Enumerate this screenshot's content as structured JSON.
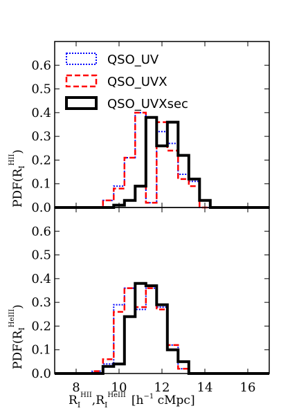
{
  "chart_data": [
    {
      "type": "step",
      "panel": "top",
      "ylabel": {
        "main": "PDF(R",
        "sub": "I",
        "sup": "HII",
        "close": ")"
      },
      "xlim": [
        7,
        17
      ],
      "ylim": [
        0,
        0.7
      ],
      "yticks": [
        "0.0",
        "0.1",
        "0.2",
        "0.3",
        "0.4",
        "0.5",
        "0.6"
      ],
      "bin_edges": [
        9.25,
        9.75,
        10.25,
        10.75,
        11.25,
        11.75,
        12.25,
        12.75,
        13.25,
        13.75,
        14.25,
        14.75,
        15.25,
        15.75,
        16.25
      ],
      "series": [
        {
          "name": "QSO_UV",
          "color": "#0000ff",
          "style": "dotted",
          "values": [
            0.03,
            0.09,
            0.21,
            0.4,
            0.02,
            0.32,
            0.27,
            0.14,
            0.11,
            0.0,
            0.0,
            0.0,
            0.0,
            0.0
          ]
        },
        {
          "name": "QSO_UVX",
          "color": "#ff0000",
          "style": "dashed",
          "values": [
            0.03,
            0.08,
            0.21,
            0.4,
            0.02,
            0.36,
            0.24,
            0.12,
            0.09,
            0.0,
            0.0,
            0.0,
            0.0,
            0.0
          ]
        },
        {
          "name": "QSO_UVXsec",
          "color": "#000000",
          "style": "solid",
          "values": [
            0.0,
            0.01,
            0.03,
            0.09,
            0.38,
            0.26,
            0.36,
            0.22,
            0.12,
            0.03,
            0.0,
            0.0,
            0.0,
            0.0
          ]
        }
      ]
    },
    {
      "type": "step",
      "panel": "bottom",
      "ylabel": {
        "main": "PDF(R",
        "sub": "I",
        "sup": "HeIII",
        "close": ")"
      },
      "xlabel": {
        "r1": "R",
        "r1_sub": "I",
        "r1_sup": "HII",
        "sep": ",",
        "r2": "R",
        "r2_sub": "I",
        "r2_sup": "HeIII",
        "unit": "[h",
        "unit_sup": "−1",
        "unit_end": " cMpc]"
      },
      "xlim": [
        7,
        17
      ],
      "ylim": [
        0,
        0.7
      ],
      "xticks": [
        "8",
        "10",
        "12",
        "14",
        "16"
      ],
      "yticks": [
        "0.0",
        "0.1",
        "0.2",
        "0.3",
        "0.4",
        "0.5",
        "0.6"
      ],
      "bin_edges": [
        8.75,
        9.25,
        9.75,
        10.25,
        10.75,
        11.25,
        11.75,
        12.25,
        12.75,
        13.25,
        13.75,
        14.25,
        14.75
      ],
      "series": [
        {
          "name": "QSO_UV",
          "color": "#0000ff",
          "style": "dotted",
          "values": [
            0.01,
            0.04,
            0.29,
            0.36,
            0.27,
            0.36,
            0.28,
            0.12,
            0.02,
            0.0,
            0.0,
            0.0
          ]
        },
        {
          "name": "QSO_UVX",
          "color": "#ff0000",
          "style": "dashed",
          "values": [
            0.01,
            0.06,
            0.26,
            0.36,
            0.28,
            0.36,
            0.27,
            0.12,
            0.02,
            0.0,
            0.0,
            0.0
          ]
        },
        {
          "name": "QSO_UVXsec",
          "color": "#000000",
          "style": "solid",
          "values": [
            0.0,
            0.03,
            0.04,
            0.24,
            0.38,
            0.37,
            0.29,
            0.1,
            0.05,
            0.0,
            0.0,
            0.0
          ]
        }
      ]
    }
  ],
  "legend": {
    "placement": "upper-left of top panel",
    "items": [
      {
        "label": "QSO_UV",
        "color": "#0000ff",
        "style": "dotted"
      },
      {
        "label": "QSO_UVX",
        "color": "#ff0000",
        "style": "dashed"
      },
      {
        "label": "QSO_UVXsec",
        "color": "#000000",
        "style": "solid"
      }
    ]
  }
}
